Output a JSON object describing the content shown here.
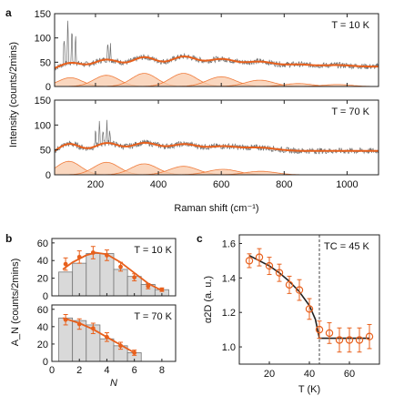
{
  "colors": {
    "raw": "#707070",
    "fit": "#e8601c",
    "peak_fill": "#f8c9aa",
    "peak_line": "#f07c3c",
    "bar": "#d9d9d9",
    "bar_edge": "#777777"
  },
  "panel_letters": {
    "a": "a",
    "b": "b",
    "c": "c"
  },
  "chart_data": [
    {
      "type": "line",
      "panel": "a",
      "temp_label": "T = 10 K",
      "ylabel": "Intensity (counts/2mins)",
      "xlabel": "",
      "xlim": [
        70,
        1100
      ],
      "ylim": [
        0,
        150
      ],
      "x_ticks": [],
      "y_ticks": [
        "0",
        "50",
        "100",
        "150"
      ],
      "peaks": [
        {
          "center": 120,
          "amplitude": 18,
          "width": 38
        },
        {
          "center": 235,
          "amplitude": 23,
          "width": 40
        },
        {
          "center": 355,
          "amplitude": 27,
          "width": 40
        },
        {
          "center": 480,
          "amplitude": 27,
          "width": 42
        },
        {
          "center": 600,
          "amplitude": 20,
          "width": 45
        },
        {
          "center": 722,
          "amplitude": 13,
          "width": 45
        },
        {
          "center": 845,
          "amplitude": 6,
          "width": 45
        },
        {
          "center": 968,
          "amplitude": 4,
          "width": 45
        }
      ],
      "fit_baseline": [
        [
          70,
          33
        ],
        [
          200,
          36
        ],
        [
          400,
          38
        ],
        [
          700,
          41
        ],
        [
          1100,
          43
        ]
      ],
      "spikes": [
        [
          100,
          60
        ],
        [
          112,
          95
        ],
        [
          125,
          80
        ],
        [
          137,
          60
        ],
        [
          240,
          30
        ],
        [
          248,
          25
        ]
      ],
      "series": [
        {
          "values": []
        }
      ]
    },
    {
      "type": "line",
      "panel": "a",
      "temp_label": "T = 70 K",
      "ylabel": "",
      "xlabel": "Raman shift (cm⁻¹)",
      "xlim": [
        70,
        1100
      ],
      "ylim": [
        0,
        150
      ],
      "x_ticks": [
        "200",
        "400",
        "600",
        "800",
        "1000"
      ],
      "y_ticks": [
        "0",
        "50",
        "100",
        "150"
      ],
      "peaks": [
        {
          "center": 115,
          "amplitude": 27,
          "width": 38
        },
        {
          "center": 235,
          "amplitude": 25,
          "width": 40
        },
        {
          "center": 355,
          "amplitude": 22,
          "width": 42
        },
        {
          "center": 480,
          "amplitude": 17,
          "width": 45
        },
        {
          "center": 605,
          "amplitude": 11,
          "width": 48
        },
        {
          "center": 725,
          "amplitude": 7,
          "width": 48
        }
      ],
      "fit_baseline": [
        [
          70,
          38
        ],
        [
          200,
          42
        ],
        [
          400,
          47
        ],
        [
          700,
          50
        ],
        [
          1100,
          50
        ]
      ],
      "spikes": [
        [
          200,
          20
        ],
        [
          212,
          35
        ],
        [
          224,
          25
        ],
        [
          236,
          40
        ],
        [
          246,
          18
        ]
      ],
      "series": [
        {
          "values": []
        }
      ]
    },
    {
      "type": "bar",
      "panel": "b",
      "temp_label": "T = 10 K",
      "ylabel": "A_N (counts/2mins)",
      "xlabel": "",
      "xlim": [
        0,
        9
      ],
      "ylim": [
        0,
        65
      ],
      "x_ticks": [],
      "y_ticks": [
        "0",
        "20",
        "40",
        "60"
      ],
      "categories": [
        1,
        2,
        3,
        4,
        5,
        6,
        7,
        8
      ],
      "values": [
        27,
        37,
        48,
        48,
        30,
        22,
        13,
        7
      ],
      "points": [
        [
          1,
          36
        ],
        [
          2,
          44
        ],
        [
          3,
          49
        ],
        [
          4,
          46
        ],
        [
          5,
          33
        ],
        [
          6,
          21
        ],
        [
          7,
          11
        ],
        [
          8,
          7
        ]
      ],
      "errors": [
        7,
        7,
        7,
        6,
        5,
        4,
        3,
        2
      ],
      "fit": [
        [
          0.8,
          30
        ],
        [
          1.5,
          38
        ],
        [
          2.5,
          46
        ],
        [
          3.2,
          49
        ],
        [
          4,
          47
        ],
        [
          5,
          38
        ],
        [
          6,
          26
        ],
        [
          7,
          14
        ],
        [
          8,
          6
        ]
      ]
    },
    {
      "type": "bar",
      "panel": "b",
      "temp_label": "T = 70 K",
      "ylabel": "",
      "xlabel": "N",
      "xlim": [
        0,
        9
      ],
      "ylim": [
        0,
        65
      ],
      "x_ticks": [
        "0",
        "2",
        "4",
        "6",
        "8"
      ],
      "y_ticks": [
        "0",
        "20",
        "40",
        "60"
      ],
      "categories": [
        1,
        2,
        3,
        4,
        5,
        6
      ],
      "values": [
        50,
        47,
        42,
        26,
        18,
        10
      ],
      "points": [
        [
          1,
          48
        ],
        [
          2,
          43
        ],
        [
          3,
          38
        ],
        [
          4,
          28
        ],
        [
          5,
          18
        ],
        [
          6,
          10
        ]
      ],
      "errors": [
        6,
        6,
        6,
        5,
        4,
        3
      ],
      "fit": [
        [
          0.8,
          50
        ],
        [
          2,
          44
        ],
        [
          3,
          37
        ],
        [
          4,
          28
        ],
        [
          5,
          19
        ],
        [
          6,
          10
        ]
      ]
    },
    {
      "type": "scatter",
      "panel": "c",
      "xlabel": "T (K)",
      "ylabel": "α2D (a. u.)",
      "xlim": [
        5,
        75
      ],
      "ylim": [
        0.9,
        1.65
      ],
      "x_ticks": [
        "20",
        "40",
        "60"
      ],
      "y_ticks": [
        "1.0",
        "1.2",
        "1.4",
        "1.6"
      ],
      "tc_label": "TC = 45 K",
      "tc": 45,
      "points": [
        [
          10,
          1.5
        ],
        [
          15,
          1.52
        ],
        [
          20,
          1.47
        ],
        [
          25,
          1.43
        ],
        [
          30,
          1.36
        ],
        [
          35,
          1.33
        ],
        [
          40,
          1.22
        ],
        [
          45,
          1.1
        ],
        [
          50,
          1.08
        ],
        [
          55,
          1.04
        ],
        [
          60,
          1.04
        ],
        [
          65,
          1.04
        ],
        [
          70,
          1.06
        ]
      ],
      "errors": [
        0.04,
        0.05,
        0.05,
        0.05,
        0.05,
        0.06,
        0.06,
        0.05,
        0.06,
        0.07,
        0.07,
        0.07,
        0.07
      ],
      "fit": [
        [
          10,
          1.53
        ],
        [
          15,
          1.5
        ],
        [
          20,
          1.47
        ],
        [
          25,
          1.43
        ],
        [
          30,
          1.38
        ],
        [
          35,
          1.32
        ],
        [
          40,
          1.24
        ],
        [
          43,
          1.16
        ],
        [
          45,
          1.05
        ],
        [
          70,
          1.05
        ]
      ]
    }
  ]
}
